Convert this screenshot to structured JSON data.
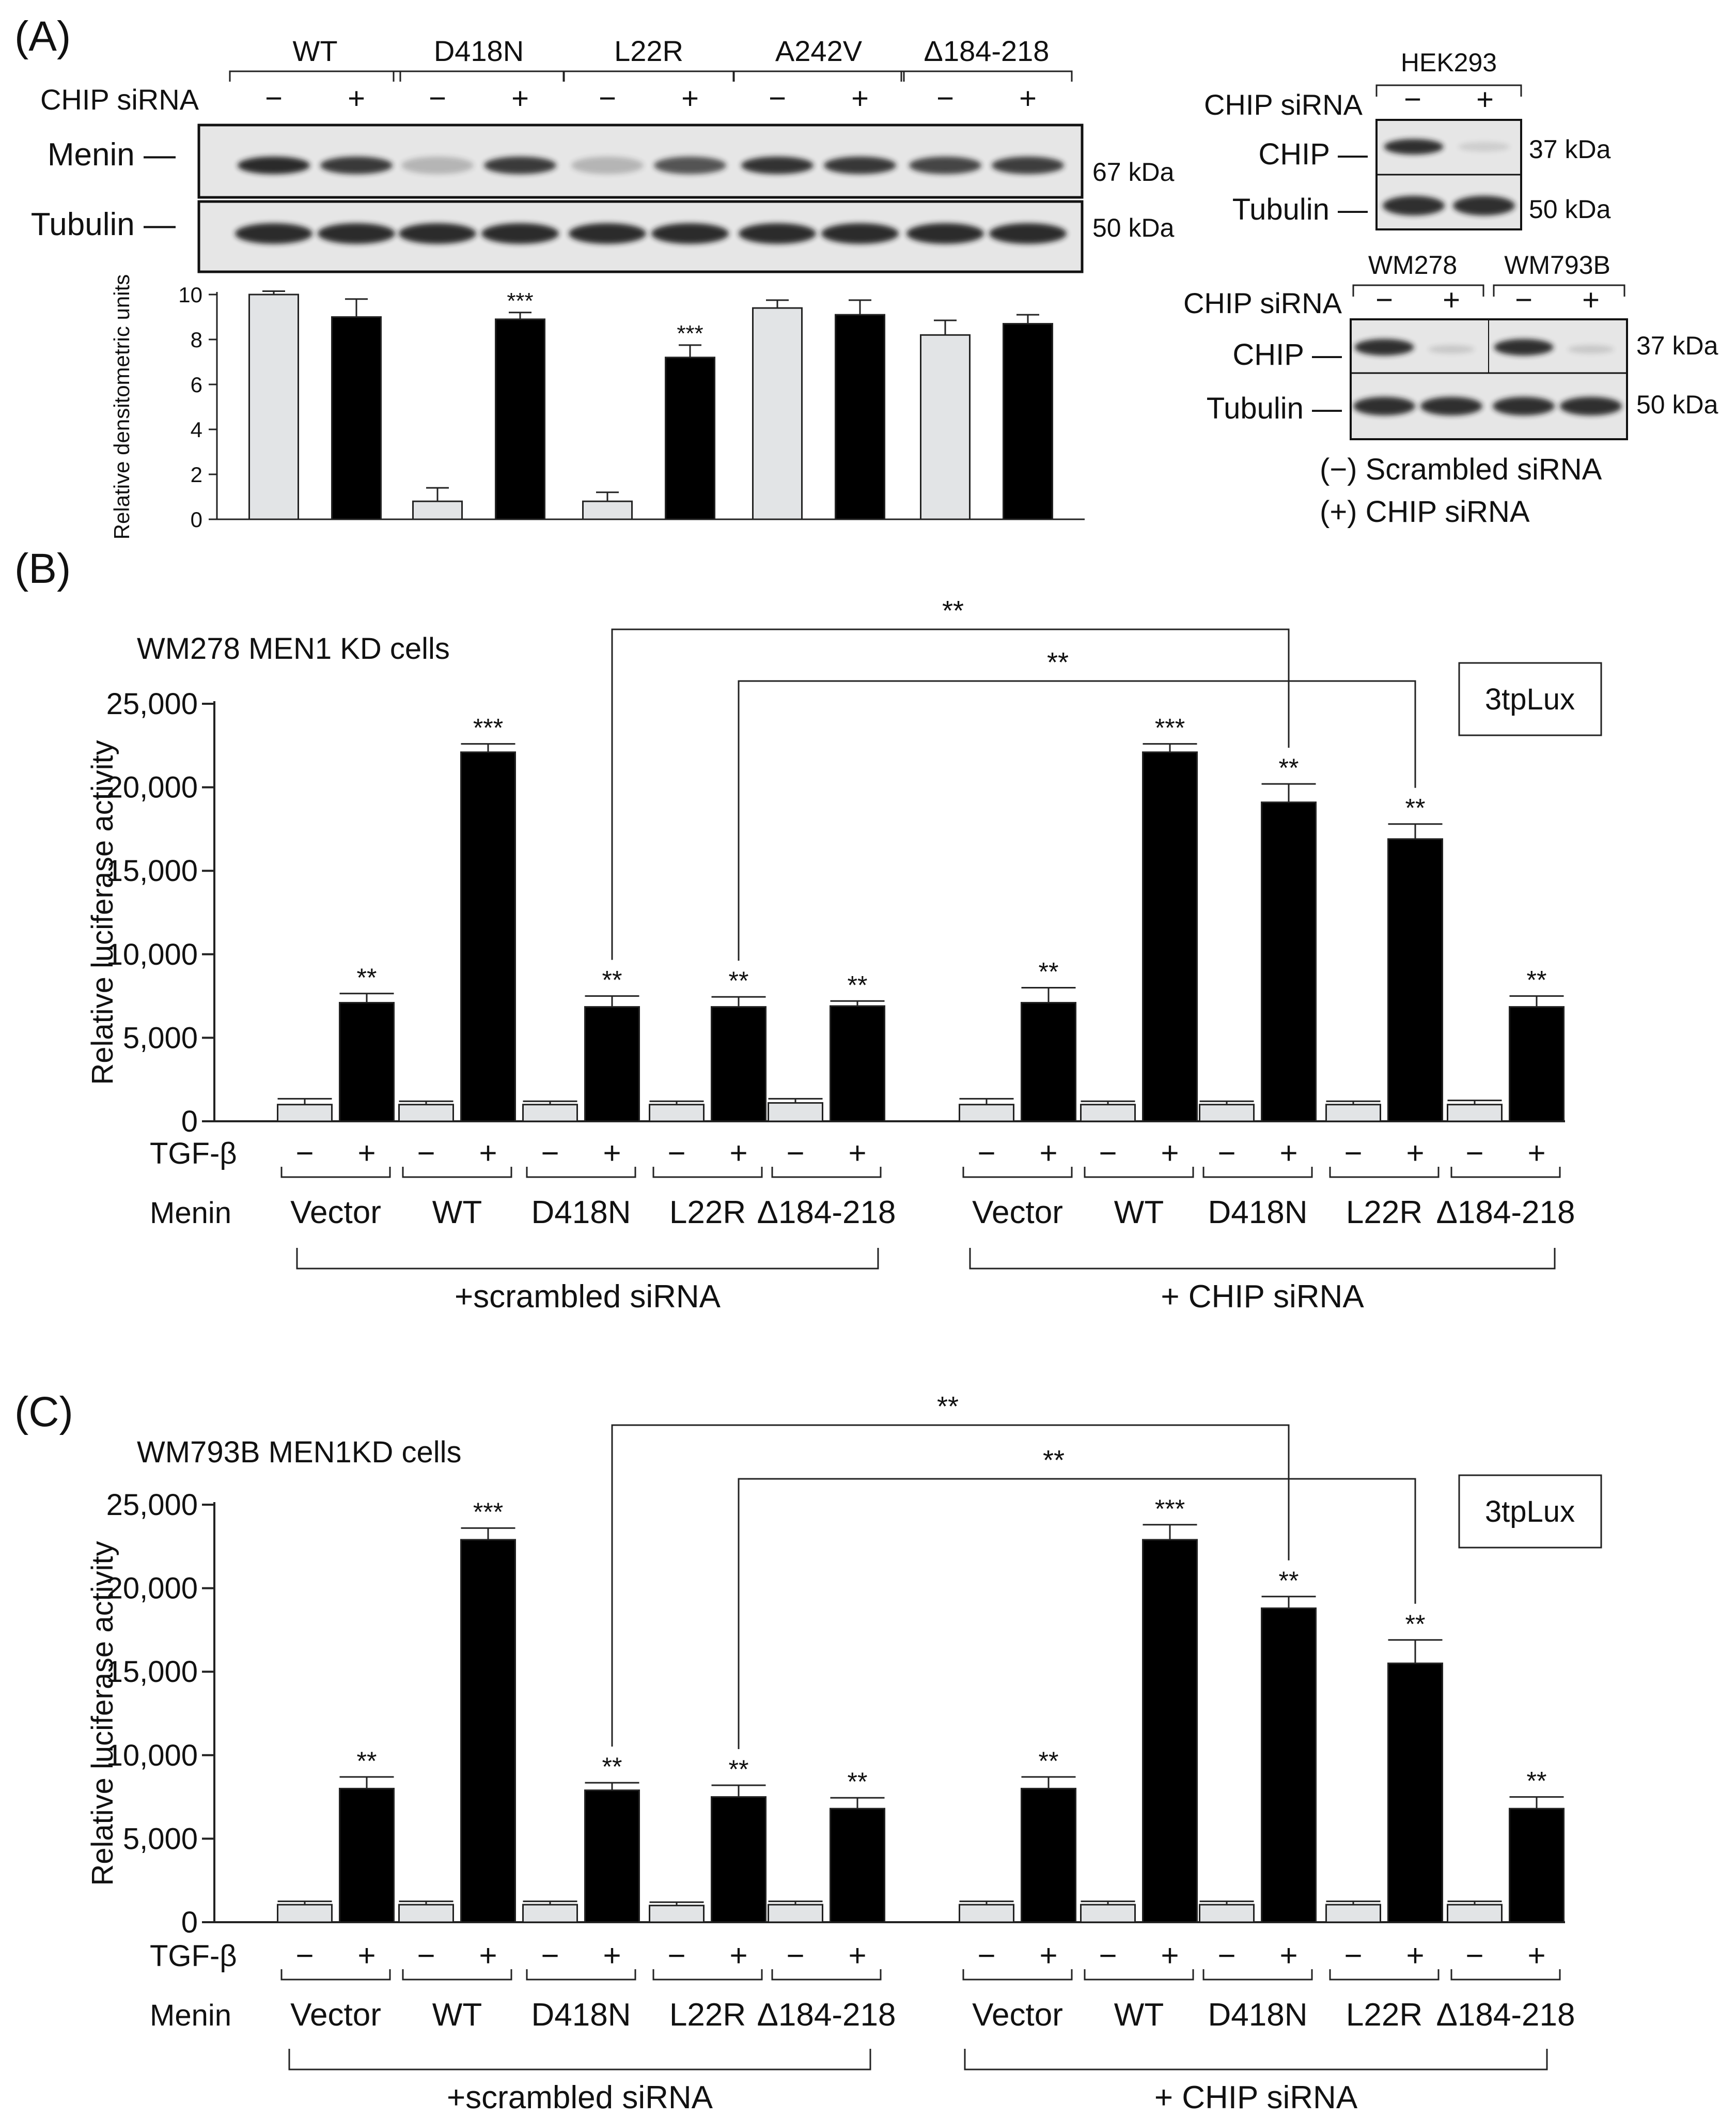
{
  "panel_labels": {
    "a": "(A)",
    "b": "(B)",
    "c": "(C)"
  },
  "colors": {
    "black_bar": "#000000",
    "grey_bar": "#e2e4e6",
    "blot_bg": "#e6e6e6",
    "band": "#1e1e1e",
    "text": "#111111"
  },
  "panel_a": {
    "blot": {
      "groups": [
        "WT",
        "D418N",
        "L22R",
        "A242V",
        "Δ184-218"
      ],
      "sirna_label": "CHIP siRNA",
      "signs": [
        "−",
        "+"
      ],
      "rows": [
        "Menin —",
        "Tubulin —"
      ],
      "kda": [
        "67 kDa",
        "50 kDa"
      ]
    },
    "hek293": {
      "title": "HEK293",
      "sirna_label": "CHIP siRNA",
      "signs": [
        "−",
        "+"
      ],
      "rows": [
        "CHIP —",
        "Tubulin —"
      ],
      "kda": [
        "37 kDa",
        "50 kDa"
      ]
    },
    "wm": {
      "groups": [
        "WM278",
        "WM793B"
      ],
      "sirna_label": "CHIP siRNA",
      "signs": [
        "−",
        "+"
      ],
      "rows": [
        "CHIP —",
        "Tubulin —"
      ],
      "kda": [
        "37 kDa",
        "50 kDa"
      ]
    },
    "legend": [
      "(−) Scrambled siRNA",
      "(+) CHIP siRNA"
    ]
  },
  "chart_data": [
    {
      "id": "A-densitometry",
      "type": "bar",
      "title": "",
      "ylabel": "Relative densitometric units",
      "ylim": [
        0,
        10
      ],
      "ytick_labels": [
        "0",
        "2",
        "4",
        "6",
        "8",
        "10"
      ],
      "categories": [
        "WT −",
        "WT +",
        "D418N −",
        "D418N +",
        "L22R −",
        "L22R +",
        "A242V −",
        "A242V +",
        "Δ184-218 −",
        "Δ184-218 +"
      ],
      "series": [
        {
          "name": "relative densitometric units",
          "values": [
            10.0,
            9.0,
            0.8,
            8.9,
            0.8,
            7.2,
            9.4,
            9.1,
            8.2,
            8.7
          ],
          "errors": [
            0.15,
            0.8,
            0.6,
            0.3,
            0.4,
            0.55,
            0.35,
            0.65,
            0.65,
            0.4
          ],
          "fill": [
            "grey",
            "black",
            "grey",
            "black",
            "grey",
            "black",
            "grey",
            "black",
            "grey",
            "black"
          ],
          "annotations": [
            "",
            "",
            "",
            "***",
            "",
            "***",
            "",
            "",
            "",
            ""
          ]
        }
      ]
    },
    {
      "id": "B",
      "type": "bar",
      "subtitle": "WM278 MEN1 KD cells",
      "reporter": "3tpLux",
      "ylabel": "Relative luciferase activity",
      "ylim": [
        0,
        25000
      ],
      "ytick_labels": [
        "0",
        "5,000",
        "10,000",
        "15,000",
        "20,000",
        "25,000"
      ],
      "xrow_labels": [
        "TGF-β",
        "Menin"
      ],
      "signs": [
        "−",
        "+"
      ],
      "menin": [
        "Vector",
        "WT",
        "D418N",
        "L22R",
        "Δ184-218"
      ],
      "conditions": [
        "+scrambled siRNA",
        "+ CHIP siRNA"
      ],
      "comparisons": [
        "**",
        "**"
      ],
      "series": [
        {
          "name": "TGF-β −",
          "values": [
            1000,
            1000,
            1000,
            1000,
            1100,
            1000,
            1000,
            1000,
            1000,
            1000
          ],
          "errors": [
            350,
            200,
            200,
            200,
            250,
            350,
            200,
            200,
            200,
            250
          ]
        },
        {
          "name": "TGF-β +",
          "values": [
            7100,
            22100,
            6850,
            6850,
            6900,
            7100,
            22100,
            19100,
            16900,
            6850
          ],
          "errors": [
            550,
            500,
            650,
            600,
            300,
            900,
            500,
            1100,
            900,
            650
          ],
          "annotations": [
            "**",
            "***",
            "**",
            "**",
            "**",
            "**",
            "***",
            "**",
            "**",
            "**"
          ]
        }
      ]
    },
    {
      "id": "C",
      "type": "bar",
      "subtitle": "WM793B MEN1KD cells",
      "reporter": "3tpLux",
      "ylabel": "Relative luciferase activity",
      "ylim": [
        0,
        25000
      ],
      "ytick_labels": [
        "0",
        "5,000",
        "10,000",
        "15,000",
        "20,000",
        "25,000"
      ],
      "xrow_labels": [
        "TGF-β",
        "Menin"
      ],
      "signs": [
        "−",
        "+"
      ],
      "menin": [
        "Vector",
        "WT",
        "D418N",
        "L22R",
        "Δ184-218"
      ],
      "conditions": [
        "+scrambled siRNA",
        "+ CHIP siRNA"
      ],
      "comparisons": [
        "**",
        "**"
      ],
      "series": [
        {
          "name": "TGF-β −",
          "values": [
            1050,
            1050,
            1050,
            1000,
            1050,
            1050,
            1050,
            1050,
            1050,
            1050
          ],
          "errors": [
            200,
            200,
            200,
            200,
            200,
            200,
            200,
            200,
            200,
            200
          ]
        },
        {
          "name": "TGF-β +",
          "values": [
            8000,
            22900,
            7900,
            7500,
            6800,
            8000,
            22900,
            18800,
            15500,
            6800
          ],
          "errors": [
            700,
            700,
            450,
            700,
            650,
            700,
            900,
            700,
            1400,
            700
          ],
          "annotations": [
            "**",
            "***",
            "**",
            "**",
            "**",
            "**",
            "***",
            "**",
            "**",
            "**"
          ]
        }
      ]
    }
  ]
}
